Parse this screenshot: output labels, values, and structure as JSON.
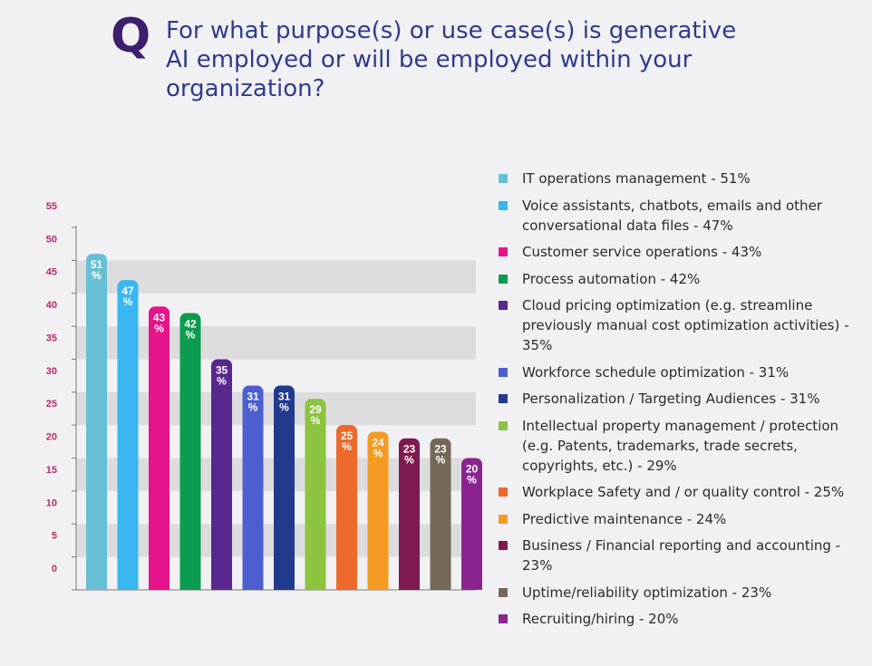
{
  "header": {
    "q_mark": "Q",
    "question_line1": "For what purpose(s) or use case(s) is generative",
    "question_line2": "AI employed or will be employed within your",
    "question_line3": "organization?"
  },
  "chart_data": {
    "type": "bar",
    "yticks": [
      0,
      5,
      10,
      15,
      20,
      25,
      30,
      35,
      40,
      45,
      50,
      55
    ],
    "ylim": [
      0,
      55
    ],
    "grid": "alternating bands",
    "legend_position": "right",
    "categories": [
      "IT operations management - 51%",
      "Voice assistants, chatbots, emails and other conversational data files - 47%",
      "Customer service operations - 43%",
      "Process automation - 42%",
      "Cloud pricing optimization (e.g. streamline previously manual cost optimization activities) - 35%",
      "Workforce schedule optimization - 31%",
      "Personalization / Targeting Audiences - 31%",
      "Intellectual property management / protection (e.g. Patents, trademarks, trade secrets, copyrights, etc.) - 29%",
      "Workplace Safety and / or quality control - 25%",
      "Predictive maintenance - 24%",
      "Business / Financial reporting and accounting - 23%",
      "Uptime/reliability optimization - 23%",
      "Recruiting/hiring - 20%"
    ],
    "values": [
      51,
      47,
      43,
      42,
      35,
      31,
      31,
      29,
      25,
      24,
      23,
      23,
      20
    ],
    "bar_labels": [
      "51",
      "47",
      "43",
      "42",
      "35",
      "31",
      "31",
      "29",
      "25",
      "24",
      "23",
      "23",
      "20"
    ],
    "bar_label_unit": "%",
    "colors": [
      "#67bfd6",
      "#3ab7f0",
      "#e5148a",
      "#0c9c4f",
      "#59288f",
      "#4d5fd0",
      "#223a8e",
      "#8cc43f",
      "#ed6a2c",
      "#f59a22",
      "#7f1a50",
      "#766857",
      "#8a2590"
    ]
  }
}
